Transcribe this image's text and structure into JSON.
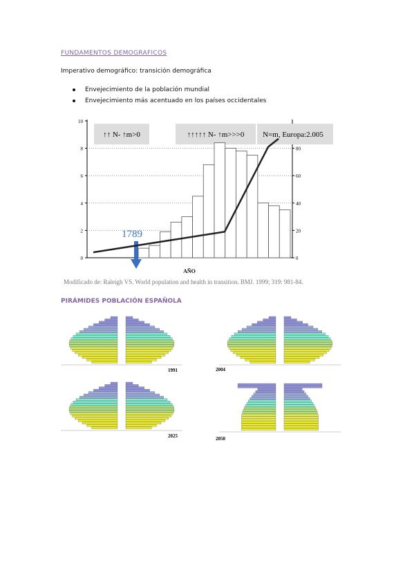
{
  "section1": {
    "heading": "FUNDAMENTOS DEMOGRAFICOS",
    "subtitle": "Imperativo demográfico: transición demográfica",
    "bullets": [
      "Envejecimiento de la población mundial",
      "Envejecimiento más acentuado en los países occidentales"
    ]
  },
  "figure": {
    "annotations": [
      "↑↑ N- ↑m>0",
      "↑↑↑↑↑ N- ↑m>>>0",
      "N=m, Europa:2.005"
    ],
    "marker": "1789",
    "xlabel": "AÑO",
    "caption": "Modificado de: Raleigh VS. World population and health in transition. BMJ. 1999; 319: 981-84.",
    "ylim": [
      0,
      10
    ],
    "yticks": [
      0,
      2,
      4,
      6,
      8,
      10
    ],
    "y2lim": [
      0,
      100
    ],
    "y2ticks": [
      0,
      20,
      40,
      60,
      80
    ],
    "bars": [
      0.7,
      0.9,
      1.9,
      2.6,
      3.0,
      4.5,
      6.8,
      8.4,
      8.0,
      7.8,
      7.5,
      4.0,
      3.8,
      3.5
    ],
    "line": [
      4,
      19,
      81,
      87
    ]
  },
  "section2": {
    "heading": "PIRÁMIDES POBLACIÓN ESPAÑOLA",
    "years": [
      "1991",
      "2004",
      "2025",
      "2050"
    ]
  }
}
